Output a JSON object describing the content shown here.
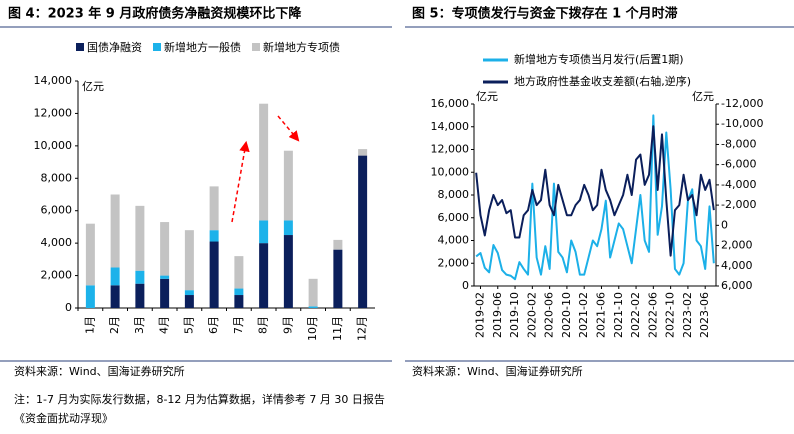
{
  "chart_data": [
    {
      "type": "stacked_bar",
      "title": "图 4：2023 年 9 月政府债务净融资规模环比下降",
      "y_unit": "亿元",
      "categories": [
        "1月",
        "2月",
        "3月",
        "4月",
        "5月",
        "6月",
        "7月",
        "8月",
        "9月",
        "10月",
        "11月",
        "12月"
      ],
      "series": [
        {
          "name": "国债净融资",
          "color": "#0b1f5b",
          "values": [
            0,
            1400,
            1500,
            1800,
            800,
            4100,
            800,
            4000,
            4500,
            0,
            3600,
            9400
          ]
        },
        {
          "name": "新增地方一般债",
          "color": "#1cb2ea",
          "values": [
            1400,
            1100,
            800,
            200,
            300,
            700,
            400,
            1400,
            900,
            100,
            0,
            0
          ]
        },
        {
          "name": "新增地方专项债",
          "color": "#c3c3c3",
          "values": [
            3800,
            4500,
            4000,
            3300,
            3700,
            2700,
            2000,
            7200,
            4300,
            1700,
            600,
            400
          ]
        }
      ],
      "ylim": [
        0,
        14000
      ],
      "yticks": [
        0,
        {
          "value": 2000,
          "label": "2,000"
        },
        {
          "value": 4000,
          "label": "4,000"
        },
        {
          "value": 6000,
          "label": "6,000"
        },
        {
          "value": 8000,
          "label": "8,000"
        },
        {
          "value": 10000,
          "label": "10,000"
        },
        {
          "value": 12000,
          "label": "12,000"
        },
        {
          "value": 14000,
          "label": "14,000"
        }
      ],
      "legend": "top",
      "source": "资料来源：Wind、国海证券研究所",
      "note": "注：1-7 月为实际发行数据，8-12 月为估算数据，详情参考 7 月 30 日报告《资金面扰动浮现》"
    },
    {
      "type": "line",
      "title": "图 5：专项债发行与资金下拨存在 1 个月时滞",
      "y_unit": "亿元",
      "y2_unit": "亿元",
      "categories": [
        null,
        "2019-02",
        null,
        null,
        null,
        "2019-06",
        null,
        null,
        null,
        "2019-10",
        null,
        null,
        null,
        "2020-02",
        null,
        null,
        null,
        "2020-06",
        null,
        null,
        null,
        "2020-10",
        null,
        null,
        null,
        "2021-02",
        null,
        null,
        null,
        "2021-06",
        null,
        null,
        null,
        "2021-10",
        null,
        null,
        null,
        "2022-02",
        null,
        null,
        null,
        "2022-06",
        null,
        null,
        null,
        "2022-10",
        null,
        null,
        null,
        "2023-02",
        null,
        null,
        null,
        "2023-06",
        null,
        null
      ],
      "series": [
        {
          "name": "新增地方专项债当月发行(后置1期)",
          "color": "#1cb0e8",
          "axis": "y",
          "values": [
            2600,
            2900,
            1600,
            1200,
            3600,
            2900,
            1400,
            1000,
            900,
            600,
            2100,
            1500,
            1000,
            9000,
            2500,
            1000,
            3500,
            1500,
            9000,
            3000,
            2500,
            1200,
            4000,
            3000,
            1000,
            1000,
            2500,
            4000,
            3500,
            5000,
            7500,
            2500,
            4000,
            5500,
            5000,
            3500,
            2000,
            5000,
            8000,
            4000,
            3000,
            15000,
            4500,
            7000,
            13500,
            8500,
            1500,
            1000,
            2000,
            7500,
            8500,
            4000,
            3500,
            1500,
            7000,
            2000
          ]
        },
        {
          "name": "地方政府性基金收支差额(右轴,逆序)",
          "color": "#0b1f5b",
          "axis": "y2",
          "values": [
            -5200,
            -1000,
            1000,
            -1500,
            -3000,
            -2000,
            -2500,
            -1200,
            -1500,
            1200,
            1200,
            -1000,
            -1500,
            -3500,
            -2000,
            -2500,
            -5500,
            -2000,
            -1000,
            -4000,
            -2500,
            -1000,
            -1000,
            -2000,
            -2500,
            -4000,
            -3000,
            -1500,
            -2000,
            -5500,
            -3500,
            -2500,
            -1000,
            -2000,
            -3000,
            -5000,
            -3000,
            -6500,
            -7000,
            -4000,
            -5000,
            -9800,
            -3500,
            -9000,
            -2500,
            3000,
            -1500,
            -2000,
            -5000,
            -2500,
            -3000,
            -1000,
            -5000,
            -3500,
            -4500,
            -1500
          ]
        }
      ],
      "ylim": [
        0,
        16000
      ],
      "yticks": [
        0,
        {
          "value": 2000,
          "label": "2,000"
        },
        {
          "value": 4000,
          "label": "4,000"
        },
        {
          "value": 6000,
          "label": "6,000"
        },
        {
          "value": 8000,
          "label": "8,000"
        },
        {
          "value": 10000,
          "label": "10,000"
        },
        {
          "value": 12000,
          "label": "12,000"
        },
        {
          "value": 14000,
          "label": "14,000"
        },
        {
          "value": 16000,
          "label": "16,000"
        }
      ],
      "y2lim": [
        -12000,
        6000
      ],
      "y2_reversed": true,
      "y2ticks": [
        {
          "value": -12000,
          "label": "-12,000"
        },
        {
          "value": -10000,
          "label": "-10,000"
        },
        {
          "value": -8000,
          "label": "-8,000"
        },
        {
          "value": -6000,
          "label": "-6,000"
        },
        {
          "value": -4000,
          "label": "-4,000"
        },
        {
          "value": -2000,
          "label": "-2,000"
        },
        0,
        {
          "value": 2000,
          "label": "2,000"
        },
        {
          "value": 4000,
          "label": "4,000"
        },
        {
          "value": 6000,
          "label": "6,000"
        }
      ],
      "legend": "top",
      "source": "资料来源：Wind、国海证券研究所"
    }
  ]
}
